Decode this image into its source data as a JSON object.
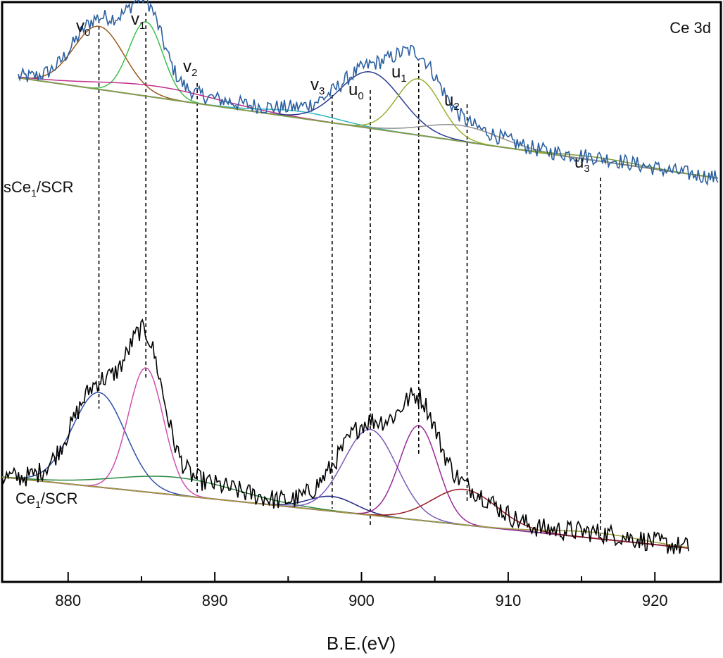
{
  "chart_data": {
    "type": "line",
    "title": "Ce 3d",
    "xlabel": "B.E.(eV)",
    "ylabel": "",
    "xlim": [
      875.5,
      924.5
    ],
    "x_ticks": [
      880,
      890,
      900,
      910,
      920
    ],
    "x_tick_labels": [
      "880",
      "890",
      "900",
      "910",
      "920"
    ],
    "peak_labels": [
      {
        "base": "v",
        "sub": "0",
        "x": 882.1
      },
      {
        "base": "v",
        "sub": "1",
        "x": 885.3
      },
      {
        "base": "v",
        "sub": "2",
        "x": 888.8
      },
      {
        "base": "v",
        "sub": "3",
        "x": 898.0
      },
      {
        "base": "u",
        "sub": "0",
        "x": 900.6
      },
      {
        "base": "u",
        "sub": "1",
        "x": 903.9
      },
      {
        "base": "u",
        "sub": "2",
        "x": 907.2
      },
      {
        "base": "u",
        "sub": "3",
        "x": 916.3
      }
    ],
    "series": [
      {
        "name": "sCe1/SCR",
        "label_base": "sCe",
        "label_sub": "1",
        "label_tail": "/SCR",
        "x_range": [
          876.6,
          924.3
        ],
        "baseline": {
          "y_start": 0.78,
          "y_end": 0.335
        },
        "measured_color": "#2a5fa0",
        "components": [
          {
            "name": "v0",
            "center": 882.1,
            "sigma": 1.7,
            "height": 0.28,
            "color": "#9a5a1e"
          },
          {
            "name": "v1",
            "center": 885.3,
            "sigma": 1.15,
            "height": 0.33,
            "color": "#3cbf4a"
          },
          {
            "name": "v2",
            "center": 886.0,
            "sigma": 4.2,
            "height": 0.05,
            "color": "#c0308a"
          },
          {
            "name": "v3",
            "center": 896.0,
            "sigma": 2.5,
            "height": 0.03,
            "color": "#30b8c0"
          },
          {
            "name": "u0",
            "center": 900.6,
            "sigma": 2.1,
            "height": 0.25,
            "color": "#2a3a90"
          },
          {
            "name": "u1",
            "center": 903.9,
            "sigma": 1.5,
            "height": 0.25,
            "color": "#98b030"
          },
          {
            "name": "u2",
            "center": 906.8,
            "sigma": 2.6,
            "height": 0.07,
            "color": "#909090"
          },
          {
            "name": "u3",
            "center": 916.3,
            "sigma": 2.5,
            "height": 0.015,
            "color": "#80a040"
          }
        ]
      },
      {
        "name": "Ce1/SCR",
        "label_base": "Ce",
        "label_sub": "1",
        "label_tail": "/SCR",
        "x_range": [
          875.5,
          922.3
        ],
        "baseline": {
          "y_start": 0.34,
          "y_end": 0.1
        },
        "measured_color": "#000000",
        "components": [
          {
            "name": "v0",
            "center": 882.1,
            "sigma": 1.8,
            "height": 0.32,
            "color": "#3050a8"
          },
          {
            "name": "v1",
            "center": 885.3,
            "sigma": 1.2,
            "height": 0.42,
            "color": "#d050b0"
          },
          {
            "name": "v2",
            "center": 887.4,
            "sigma": 4.2,
            "height": 0.06,
            "color": "#2a8a40"
          },
          {
            "name": "v3",
            "center": 898.0,
            "sigma": 1.6,
            "height": 0.05,
            "color": "#202880"
          },
          {
            "name": "u0",
            "center": 900.6,
            "sigma": 1.8,
            "height": 0.29,
            "color": "#7a5ab8"
          },
          {
            "name": "u1",
            "center": 903.9,
            "sigma": 1.3,
            "height": 0.32,
            "color": "#9a2a98"
          },
          {
            "name": "u2",
            "center": 907.0,
            "sigma": 2.2,
            "height": 0.12,
            "color": "#9a1a20"
          },
          {
            "name": "u3",
            "center": 916.0,
            "sigma": 3.0,
            "height": 0.02,
            "color": "#a0a040"
          }
        ]
      }
    ],
    "noise_amplitude": 0.035
  }
}
